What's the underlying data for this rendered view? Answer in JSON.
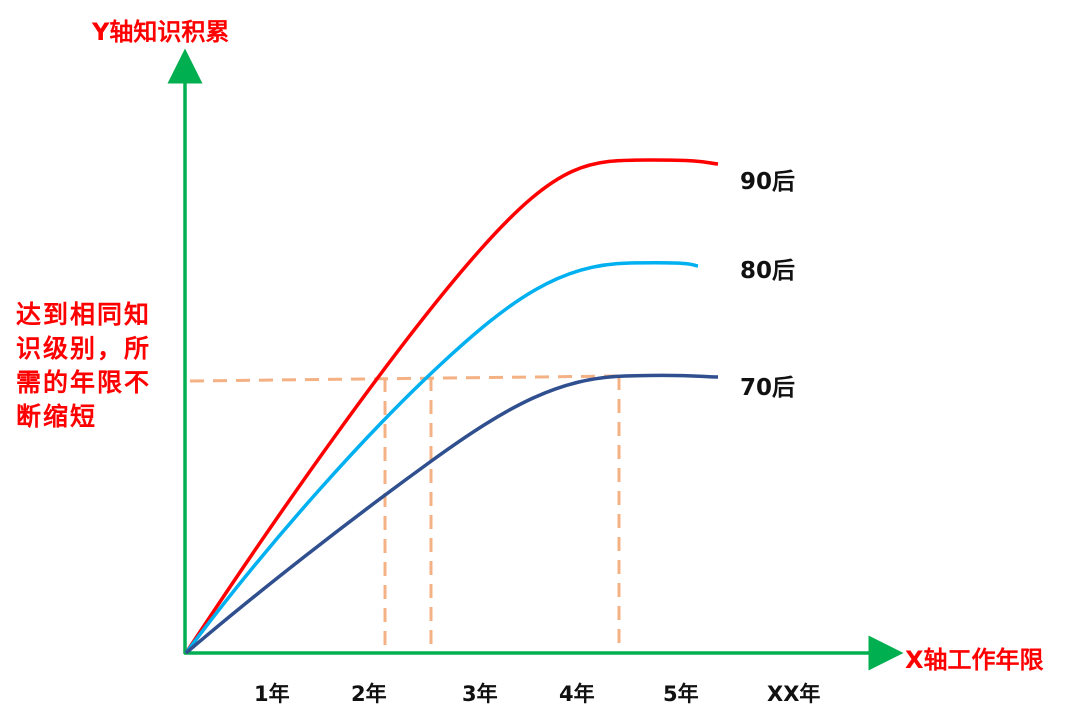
{
  "y_axis_title": "Y轴知识积累",
  "x_axis_title": "X轴工作年限",
  "annotation": "达到相同知识级别，所需的年限不断缩短",
  "x_ticks": [
    "1年",
    "2年",
    "3年",
    "4年",
    "5年",
    "XX年"
  ],
  "series": [
    {
      "name": "90后",
      "color": "#ff0000"
    },
    {
      "name": "80后",
      "color": "#00b0f0"
    },
    {
      "name": "70后",
      "color": "#2f4f8f"
    }
  ],
  "colors": {
    "axis": "#00b050",
    "guide": "#f4b183",
    "text_accent": "#ff0000"
  }
}
